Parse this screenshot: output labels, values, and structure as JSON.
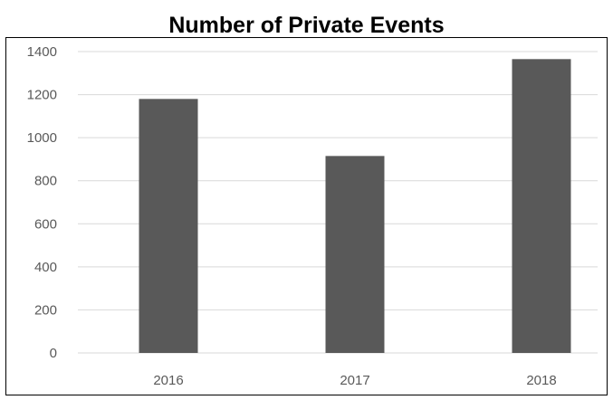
{
  "chart_data": {
    "type": "bar",
    "title": "Number of Private Events",
    "categories": [
      "2016",
      "2017",
      "2018"
    ],
    "values": [
      1180,
      915,
      1365
    ],
    "ylim": [
      0,
      1400
    ],
    "yticks": [
      0,
      200,
      400,
      600,
      800,
      1000,
      1200,
      1400
    ],
    "xlabel": "",
    "ylabel": "",
    "grid": true,
    "legend": "none",
    "bar_color": "#595959",
    "grid_color": "#d9d9d9"
  }
}
